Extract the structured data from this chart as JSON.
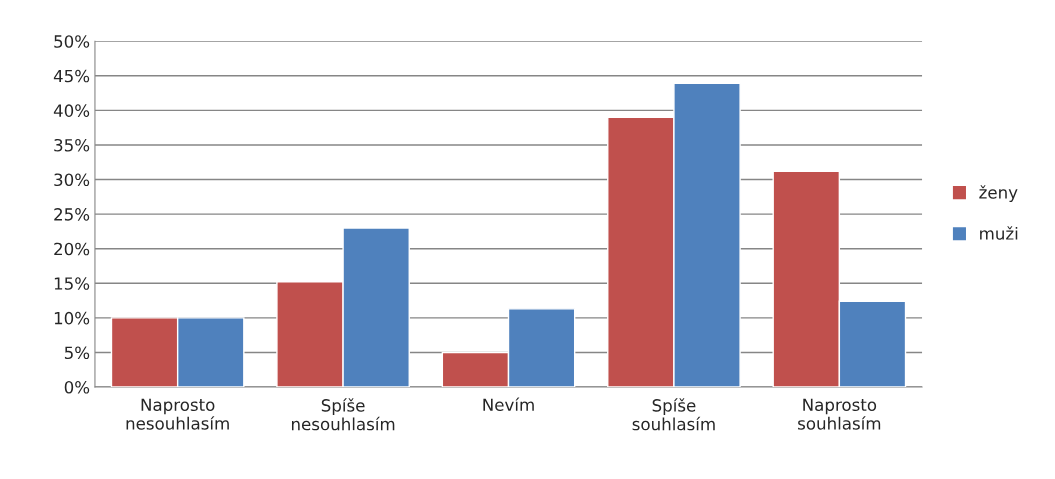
{
  "chart_data": {
    "type": "bar",
    "categories": [
      "Naprosto nesouhlasím",
      "Spíše nesouhlasím",
      "Nevím",
      "Spíše souhlasím",
      "Naprosto souhlasím"
    ],
    "series": [
      {
        "name": "ženy",
        "color": "#c0504d",
        "values": [
          10,
          15.2,
          5,
          39,
          31.2
        ]
      },
      {
        "name": "muži",
        "color": "#4f81bd",
        "values": [
          10,
          23,
          11.3,
          43.9,
          12.4
        ]
      }
    ],
    "ylim": [
      0,
      50
    ],
    "yticks": [
      {
        "value": 0,
        "label": "0%"
      },
      {
        "value": 5,
        "label": "5%"
      },
      {
        "value": 10,
        "label": "10%"
      },
      {
        "value": 15,
        "label": "15%"
      },
      {
        "value": 20,
        "label": "20%"
      },
      {
        "value": 25,
        "label": "25%"
      },
      {
        "value": 30,
        "label": "30%"
      },
      {
        "value": 35,
        "label": "35%"
      },
      {
        "value": 40,
        "label": "40%"
      },
      {
        "value": 45,
        "label": "45%"
      },
      {
        "value": 50,
        "label": "50%"
      }
    ],
    "grid": "y",
    "legend": "right"
  }
}
